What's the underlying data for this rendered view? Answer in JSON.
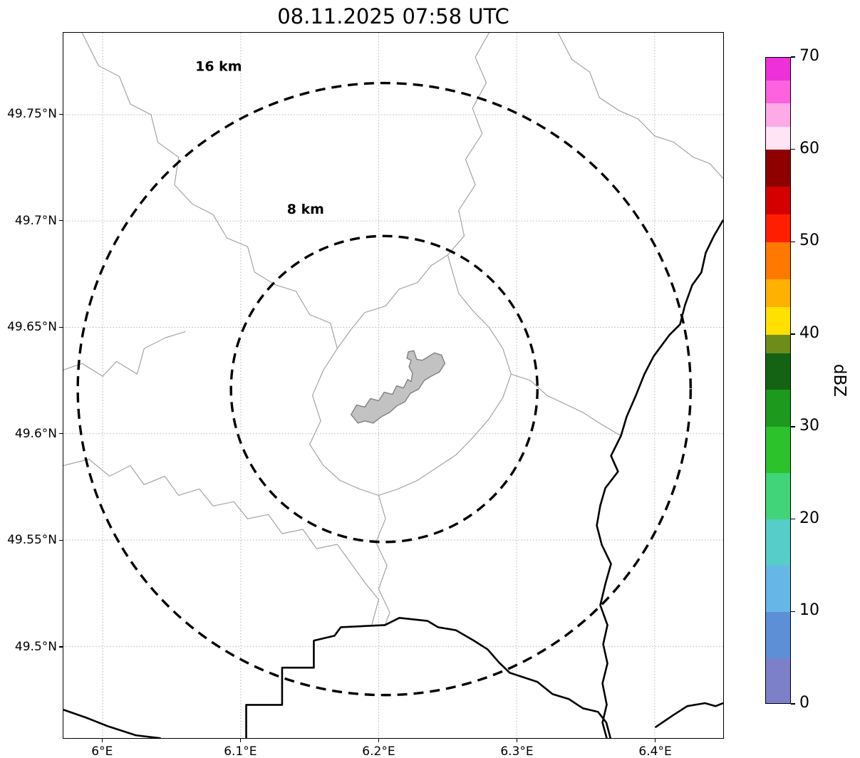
{
  "title": "08.11.2025 07:58 UTC",
  "map": {
    "extent": {
      "lon_min": 5.9715,
      "lon_max": 6.4497,
      "lat_min": 49.4569,
      "lat_max": 49.7885
    },
    "x_ticks": [
      {
        "value": 6.0,
        "label": "6°E"
      },
      {
        "value": 6.1,
        "label": "6.1°E"
      },
      {
        "value": 6.2,
        "label": "6.2°E"
      },
      {
        "value": 6.3,
        "label": "6.3°E"
      },
      {
        "value": 6.4,
        "label": "6.4°E"
      }
    ],
    "y_ticks": [
      {
        "value": 49.5,
        "label": "49.5°N"
      },
      {
        "value": 49.55,
        "label": "49.55°N"
      },
      {
        "value": 49.6,
        "label": "49.6°N"
      },
      {
        "value": 49.65,
        "label": "49.65°N"
      },
      {
        "value": 49.7,
        "label": "49.7°N"
      },
      {
        "value": 49.75,
        "label": "49.75°N"
      }
    ],
    "range_rings": {
      "center": {
        "lon": 6.204,
        "lat": 49.621
      },
      "rings": [
        {
          "radius_km": 8,
          "label": "8 km",
          "label_lon": 6.147,
          "label_lat": 49.7035
        },
        {
          "radius_km": 16,
          "label": "16 km",
          "label_lon": 6.084,
          "label_lat": 49.7705
        }
      ]
    },
    "borders_bold": [
      [
        [
          5.9715,
          49.4702
        ],
        [
          5.988,
          49.4665
        ],
        [
          6.0035,
          49.4625
        ],
        [
          6.024,
          49.4582
        ],
        [
          6.042,
          49.4568
        ]
      ],
      [
        [
          6.104,
          49.4568
        ],
        [
          6.104,
          49.4725
        ],
        [
          6.13,
          49.4725
        ],
        [
          6.13,
          49.49
        ],
        [
          6.153,
          49.49
        ],
        [
          6.153,
          49.5027
        ],
        [
          6.168,
          49.505
        ],
        [
          6.1725,
          49.509
        ],
        [
          6.2045,
          49.51
        ],
        [
          6.215,
          49.5134
        ],
        [
          6.2354,
          49.512
        ],
        [
          6.243,
          49.509
        ],
        [
          6.256,
          49.5076
        ],
        [
          6.269,
          49.5027
        ],
        [
          6.279,
          49.4986
        ],
        [
          6.287,
          49.4926
        ],
        [
          6.295,
          49.4876
        ],
        [
          6.315,
          49.4833
        ],
        [
          6.326,
          49.4776
        ],
        [
          6.338,
          49.4752
        ],
        [
          6.348,
          49.4709
        ],
        [
          6.359,
          49.4692
        ],
        [
          6.365,
          49.4642
        ],
        [
          6.368,
          49.4568
        ]
      ],
      [
        [
          6.4497,
          49.7005
        ],
        [
          6.443,
          49.693
        ],
        [
          6.437,
          49.685
        ],
        [
          6.4339,
          49.6758
        ],
        [
          6.4272,
          49.6698
        ],
        [
          6.422,
          49.6604
        ],
        [
          6.4184,
          49.6514
        ],
        [
          6.4107,
          49.6464
        ],
        [
          6.3993,
          49.6364
        ],
        [
          6.3926,
          49.628
        ],
        [
          6.3864,
          49.618
        ],
        [
          6.3797,
          49.608
        ],
        [
          6.3756,
          49.599
        ],
        [
          6.3684,
          49.5896
        ],
        [
          6.3735,
          49.5822
        ],
        [
          6.3643,
          49.5745
        ],
        [
          6.3606,
          49.5662
        ],
        [
          6.3581,
          49.5568
        ],
        [
          6.3617,
          49.5478
        ],
        [
          6.3684,
          49.5388
        ],
        [
          6.3643,
          49.5294
        ],
        [
          6.3606,
          49.5194
        ],
        [
          6.3658,
          49.51
        ],
        [
          6.3627,
          49.501
        ],
        [
          6.3658,
          49.492
        ],
        [
          6.3622,
          49.4826
        ],
        [
          6.3653,
          49.4726
        ],
        [
          6.3622,
          49.4642
        ],
        [
          6.3653,
          49.4568
        ]
      ],
      [
        [
          6.4004,
          49.4619
        ],
        [
          6.4133,
          49.4676
        ],
        [
          6.4236,
          49.4719
        ],
        [
          6.4365,
          49.4733
        ],
        [
          6.4442,
          49.4719
        ],
        [
          6.4497,
          49.4733
        ]
      ]
    ],
    "boundaries_thin": [
      [
        [
          5.985,
          49.7885
        ],
        [
          5.997,
          49.773
        ],
        [
          6.012,
          49.768
        ],
        [
          6.02,
          49.755
        ],
        [
          6.035,
          49.75
        ],
        [
          6.04,
          49.737
        ],
        [
          6.055,
          49.73
        ],
        [
          6.052,
          49.717
        ],
        [
          6.065,
          49.708
        ],
        [
          6.08,
          49.703
        ],
        [
          6.09,
          49.692
        ],
        [
          6.105,
          49.688
        ],
        [
          6.11,
          49.676
        ],
        [
          6.125,
          49.67
        ],
        [
          6.14,
          49.667
        ],
        [
          6.15,
          49.656
        ],
        [
          6.165,
          49.652
        ],
        [
          6.17,
          49.64
        ]
      ],
      [
        [
          5.9715,
          49.63
        ],
        [
          5.985,
          49.633
        ],
        [
          6.0,
          49.627
        ],
        [
          6.01,
          49.634
        ],
        [
          6.025,
          49.628
        ],
        [
          6.03,
          49.64
        ],
        [
          6.045,
          49.645
        ],
        [
          6.06,
          49.648
        ]
      ],
      [
        [
          5.9715,
          49.585
        ],
        [
          5.99,
          49.588
        ],
        [
          6.005,
          49.58
        ],
        [
          6.02,
          49.585
        ],
        [
          6.03,
          49.576
        ],
        [
          6.045,
          49.58
        ],
        [
          6.055,
          49.571
        ],
        [
          6.07,
          49.574
        ],
        [
          6.08,
          49.566
        ],
        [
          6.095,
          49.568
        ],
        [
          6.105,
          49.56
        ],
        [
          6.12,
          49.562
        ],
        [
          6.13,
          49.553
        ],
        [
          6.145,
          49.555
        ],
        [
          6.155,
          49.546
        ],
        [
          6.17,
          49.548
        ],
        [
          6.18,
          49.539
        ],
        [
          6.19,
          49.53
        ],
        [
          6.2,
          49.522
        ],
        [
          6.195,
          49.51
        ]
      ],
      [
        [
          6.28,
          49.7885
        ],
        [
          6.27,
          49.777
        ],
        [
          6.278,
          49.765
        ],
        [
          6.268,
          49.753
        ],
        [
          6.275,
          49.741
        ],
        [
          6.263,
          49.729
        ],
        [
          6.27,
          49.717
        ],
        [
          6.258,
          49.705
        ],
        [
          6.262,
          49.693
        ],
        [
          6.25,
          49.684
        ],
        [
          6.238,
          49.679
        ],
        [
          6.228,
          49.671
        ],
        [
          6.215,
          49.668
        ],
        [
          6.205,
          49.66
        ],
        [
          6.19,
          49.657
        ],
        [
          6.18,
          49.649
        ],
        [
          6.17,
          49.64
        ]
      ],
      [
        [
          6.17,
          49.64
        ],
        [
          6.16,
          49.63
        ],
        [
          6.152,
          49.618
        ],
        [
          6.158,
          49.606
        ],
        [
          6.15,
          49.595
        ],
        [
          6.16,
          49.585
        ],
        [
          6.172,
          49.578
        ],
        [
          6.186,
          49.574
        ],
        [
          6.2,
          49.571
        ],
        [
          6.214,
          49.574
        ],
        [
          6.228,
          49.578
        ],
        [
          6.242,
          49.584
        ],
        [
          6.256,
          49.59
        ],
        [
          6.268,
          49.598
        ],
        [
          6.28,
          49.607
        ],
        [
          6.29,
          49.617
        ],
        [
          6.296,
          49.628
        ],
        [
          6.29,
          49.64
        ],
        [
          6.28,
          49.65
        ],
        [
          6.268,
          49.658
        ],
        [
          6.258,
          49.666
        ],
        [
          6.25,
          49.684
        ]
      ],
      [
        [
          6.296,
          49.628
        ],
        [
          6.31,
          49.625
        ],
        [
          6.322,
          49.618
        ],
        [
          6.335,
          49.614
        ],
        [
          6.348,
          49.61
        ],
        [
          6.36,
          49.605
        ],
        [
          6.3756,
          49.599
        ]
      ],
      [
        [
          6.2,
          49.571
        ],
        [
          6.205,
          49.56
        ],
        [
          6.198,
          49.549
        ],
        [
          6.206,
          49.538
        ],
        [
          6.2,
          49.527
        ],
        [
          6.208,
          49.516
        ],
        [
          6.2045,
          49.51
        ]
      ],
      [
        [
          6.33,
          49.7885
        ],
        [
          6.34,
          49.776
        ],
        [
          6.353,
          49.77
        ],
        [
          6.36,
          49.758
        ],
        [
          6.374,
          49.752
        ],
        [
          6.388,
          49.748
        ],
        [
          6.4,
          49.74
        ],
        [
          6.414,
          49.737
        ],
        [
          6.428,
          49.73
        ],
        [
          6.44,
          49.727
        ],
        [
          6.4497,
          49.72
        ]
      ]
    ],
    "urban_area": [
      [
        6.18,
        49.609
      ],
      [
        6.184,
        49.6135
      ],
      [
        6.19,
        49.6125
      ],
      [
        6.194,
        49.6165
      ],
      [
        6.2,
        49.6155
      ],
      [
        6.204,
        49.6195
      ],
      [
        6.21,
        49.6185
      ],
      [
        6.213,
        49.6225
      ],
      [
        6.218,
        49.6215
      ],
      [
        6.221,
        49.6255
      ],
      [
        6.2235,
        49.6245
      ],
      [
        6.2245,
        49.6285
      ],
      [
        6.222,
        49.6315
      ],
      [
        6.2235,
        49.6345
      ],
      [
        6.2205,
        49.6355
      ],
      [
        6.2215,
        49.6385
      ],
      [
        6.2255,
        49.639
      ],
      [
        6.2275,
        49.635
      ],
      [
        6.2315,
        49.6345
      ],
      [
        6.2355,
        49.636
      ],
      [
        6.2405,
        49.638
      ],
      [
        6.2455,
        49.637
      ],
      [
        6.248,
        49.633
      ],
      [
        6.244,
        49.629
      ],
      [
        6.238,
        49.627
      ],
      [
        6.233,
        49.625
      ],
      [
        6.229,
        49.621
      ],
      [
        6.223,
        49.619
      ],
      [
        6.219,
        49.615
      ],
      [
        6.213,
        49.613
      ],
      [
        6.208,
        49.61
      ],
      [
        6.202,
        49.608
      ],
      [
        6.196,
        49.605
      ],
      [
        6.19,
        49.606
      ],
      [
        6.185,
        49.605
      ]
    ]
  },
  "colorbar": {
    "label": "dBZ",
    "min": 0,
    "max": 70,
    "ticks": [
      0,
      10,
      20,
      30,
      40,
      50,
      60,
      70
    ],
    "segments": [
      {
        "from": 0,
        "to": 5,
        "color": "#7c80c8"
      },
      {
        "from": 5,
        "to": 10,
        "color": "#5c8fd6"
      },
      {
        "from": 10,
        "to": 15,
        "color": "#67b6e8"
      },
      {
        "from": 15,
        "to": 20,
        "color": "#55cdc9"
      },
      {
        "from": 20,
        "to": 25,
        "color": "#40d578"
      },
      {
        "from": 25,
        "to": 30,
        "color": "#2cc22c"
      },
      {
        "from": 30,
        "to": 34,
        "color": "#1d9a1d"
      },
      {
        "from": 34,
        "to": 38,
        "color": "#146314"
      },
      {
        "from": 38,
        "to": 40,
        "color": "#6e8c1a"
      },
      {
        "from": 40,
        "to": 43,
        "color": "#ffe000"
      },
      {
        "from": 43,
        "to": 46,
        "color": "#ffb000"
      },
      {
        "from": 46,
        "to": 50,
        "color": "#ff7800"
      },
      {
        "from": 50,
        "to": 53,
        "color": "#ff1e00"
      },
      {
        "from": 53,
        "to": 56,
        "color": "#d40000"
      },
      {
        "from": 56,
        "to": 60,
        "color": "#8f0000"
      },
      {
        "from": 60,
        "to": 62.5,
        "color": "#ffe4f6"
      },
      {
        "from": 62.5,
        "to": 65,
        "color": "#ffaae8"
      },
      {
        "from": 65,
        "to": 67.5,
        "color": "#ff62df"
      },
      {
        "from": 67.5,
        "to": 70,
        "color": "#ee30d8"
      }
    ]
  },
  "colors": {
    "grid": "#b5b5b5",
    "boundary_thin": "#9c9c9c",
    "border_bold": "#000000",
    "urban_fill": "#c2c2c2",
    "urban_stroke": "#808080",
    "ring": "#000000",
    "background": "#ffffff"
  },
  "chart_data": {
    "type": "heatmap",
    "title": "08.11.2025 07:58 UTC",
    "x_range": [
      5.9715,
      6.4497
    ],
    "y_range": [
      49.4569,
      49.7885
    ],
    "xlabel": "",
    "ylabel": "",
    "colorbar_label": "dBZ",
    "colorbar_range": [
      0,
      70
    ],
    "radar_echoes": []
  }
}
